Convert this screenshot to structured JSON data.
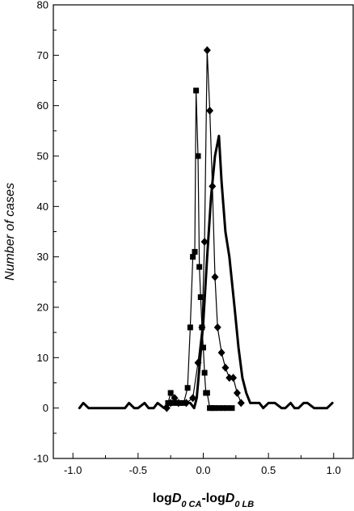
{
  "chart_data": {
    "type": "line",
    "title": "",
    "xlabel_parts": [
      {
        "text": "log",
        "italic": false,
        "sub": false
      },
      {
        "text": "D",
        "italic": true,
        "sub": false
      },
      {
        "text": "0 CA",
        "italic": true,
        "sub": true
      },
      {
        "text": "-log",
        "italic": false,
        "sub": false
      },
      {
        "text": "D",
        "italic": true,
        "sub": false
      },
      {
        "text": "0 LB",
        "italic": true,
        "sub": true
      }
    ],
    "ylabel": "Number of cases",
    "xlim": [
      -1.15,
      1.15
    ],
    "ylim": [
      -10,
      80
    ],
    "xticks": [
      -1.0,
      -0.5,
      0.0,
      0.5,
      1.0
    ],
    "xtick_labels": [
      "-1.0",
      "-0.5",
      "0.0",
      "0.5",
      "1.0"
    ],
    "yticks": [
      -10,
      0,
      10,
      20,
      30,
      40,
      50,
      60,
      70,
      80
    ],
    "ytick_labels": [
      "-10",
      "0",
      "10",
      "20",
      "30",
      "40",
      "50",
      "60",
      "70",
      "80"
    ],
    "grid": false,
    "legend": "none",
    "series": [
      {
        "style": "thick-line",
        "color": "#000000",
        "x": [
          -0.95,
          -0.92,
          -0.88,
          -0.85,
          -0.8,
          -0.75,
          -0.7,
          -0.65,
          -0.6,
          -0.57,
          -0.53,
          -0.5,
          -0.45,
          -0.42,
          -0.38,
          -0.35,
          -0.3,
          -0.27,
          -0.23,
          -0.2,
          -0.17,
          -0.13,
          -0.1,
          -0.07,
          -0.05,
          -0.03,
          0.0,
          0.03,
          0.06,
          0.09,
          0.12,
          0.14,
          0.17,
          0.2,
          0.24,
          0.27,
          0.3,
          0.33,
          0.36,
          0.4,
          0.43,
          0.46,
          0.5,
          0.55,
          0.6,
          0.63,
          0.67,
          0.7,
          0.73,
          0.77,
          0.8,
          0.85,
          0.9,
          0.95,
          0.99
        ],
        "y": [
          0,
          1,
          0,
          0,
          0,
          0,
          0,
          0,
          0,
          1,
          0,
          0,
          1,
          0,
          0,
          1,
          0,
          1,
          1,
          1,
          1,
          1,
          1,
          0,
          2,
          8,
          17,
          30,
          42,
          50,
          54,
          45,
          35,
          30,
          20,
          12,
          6,
          3,
          1,
          1,
          1,
          0,
          1,
          1,
          0,
          0,
          1,
          0,
          0,
          1,
          1,
          0,
          0,
          0,
          1
        ]
      },
      {
        "style": "line-square-markers",
        "color": "#000000",
        "x": [
          -0.27,
          -0.25,
          -0.22,
          -0.18,
          -0.15,
          -0.12,
          -0.1,
          -0.08,
          -0.065,
          -0.055,
          -0.04,
          -0.03,
          -0.02,
          -0.01,
          0.0,
          0.01,
          0.02,
          0.03,
          0.05,
          0.07,
          0.09,
          0.12,
          0.15,
          0.18,
          0.22
        ],
        "y": [
          1,
          3,
          1,
          1,
          1,
          4,
          16,
          30,
          31,
          63,
          50,
          28,
          22,
          16,
          12,
          7,
          3,
          3,
          0,
          0,
          0,
          0,
          0,
          0,
          0
        ]
      },
      {
        "style": "line-diamond-markers",
        "color": "#000000",
        "x": [
          -0.28,
          -0.25,
          -0.22,
          -0.19,
          -0.13,
          -0.08,
          -0.04,
          -0.01,
          0.01,
          0.03,
          0.05,
          0.07,
          0.09,
          0.11,
          0.14,
          0.17,
          0.2,
          0.23,
          0.26,
          0.29
        ],
        "y": [
          0,
          1,
          2,
          1,
          1,
          2,
          9,
          16,
          33,
          71,
          59,
          44,
          26,
          16,
          11,
          8,
          6,
          6,
          3,
          1
        ]
      }
    ]
  }
}
